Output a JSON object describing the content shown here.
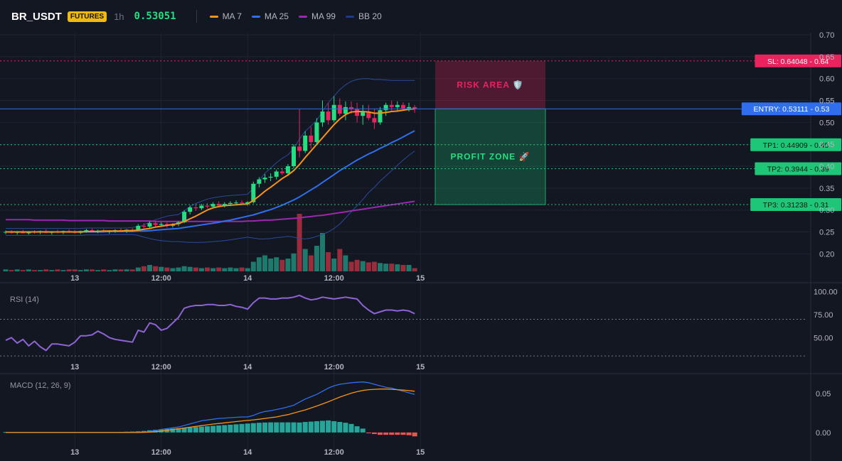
{
  "header": {
    "symbol": "BR_USDT",
    "badge": "FUTURES",
    "timeframe": "1h",
    "last_price": "0.53051",
    "price_color": "#26de81",
    "legend": [
      {
        "label": "MA 7",
        "color": "#f7931a"
      },
      {
        "label": "MA 25",
        "color": "#2f6fed"
      },
      {
        "label": "MA 99",
        "color": "#9c27b0"
      },
      {
        "label": "BB 20",
        "color": "#1e3a8a"
      }
    ]
  },
  "colors": {
    "background": "#131722",
    "grid": "#1f2430",
    "up": "#26de81",
    "down": "#e8245f",
    "vol_up": "#1d7a6c",
    "vol_down": "#9a2c3c",
    "ma7": "#f7931a",
    "ma25": "#2f6fed",
    "ma99": "#9c27b0",
    "bb": "#2a4a9a",
    "rsi": "#8e63d6",
    "macd": "#2f6fed",
    "signal": "#f7931a",
    "hist_up": "#26a69a",
    "hist_down": "#ef5350",
    "entry": "#2f6fed",
    "stop": "#e8245f",
    "target": "#1ec677"
  },
  "x_axis": {
    "labels": [
      "13",
      "12:00",
      "14",
      "12:00",
      "15"
    ],
    "label_bars": [
      12,
      27,
      42,
      57,
      72
    ]
  },
  "chart_data": [
    {
      "type": "candlestick",
      "pane": "price",
      "y_ticks": [
        "0.70",
        "0.65",
        "0.60",
        "0.55",
        "0.50",
        "0.45",
        "0.40",
        "0.35",
        "0.30",
        "0.25",
        "0.20"
      ],
      "ylim": [
        0.16,
        0.705
      ],
      "candles_ohlc": [
        [
          0.249,
          0.253,
          0.245,
          0.25
        ],
        [
          0.25,
          0.254,
          0.246,
          0.248
        ],
        [
          0.248,
          0.252,
          0.244,
          0.251
        ],
        [
          0.251,
          0.255,
          0.247,
          0.247
        ],
        [
          0.247,
          0.252,
          0.244,
          0.25
        ],
        [
          0.25,
          0.254,
          0.246,
          0.249
        ],
        [
          0.249,
          0.253,
          0.245,
          0.252
        ],
        [
          0.252,
          0.256,
          0.247,
          0.248
        ],
        [
          0.248,
          0.252,
          0.244,
          0.251
        ],
        [
          0.251,
          0.255,
          0.247,
          0.249
        ],
        [
          0.249,
          0.253,
          0.245,
          0.252
        ],
        [
          0.252,
          0.256,
          0.248,
          0.25
        ],
        [
          0.25,
          0.254,
          0.246,
          0.248
        ],
        [
          0.248,
          0.253,
          0.245,
          0.252
        ],
        [
          0.252,
          0.257,
          0.248,
          0.254
        ],
        [
          0.254,
          0.258,
          0.249,
          0.251
        ],
        [
          0.251,
          0.255,
          0.247,
          0.253
        ],
        [
          0.253,
          0.257,
          0.249,
          0.25
        ],
        [
          0.25,
          0.254,
          0.246,
          0.252
        ],
        [
          0.252,
          0.256,
          0.248,
          0.254
        ],
        [
          0.254,
          0.258,
          0.25,
          0.252
        ],
        [
          0.252,
          0.256,
          0.248,
          0.255
        ],
        [
          0.255,
          0.259,
          0.251,
          0.253
        ],
        [
          0.253,
          0.268,
          0.252,
          0.264
        ],
        [
          0.264,
          0.27,
          0.258,
          0.262
        ],
        [
          0.262,
          0.274,
          0.258,
          0.27
        ],
        [
          0.27,
          0.276,
          0.262,
          0.266
        ],
        [
          0.266,
          0.272,
          0.262,
          0.268
        ],
        [
          0.268,
          0.272,
          0.26,
          0.264
        ],
        [
          0.264,
          0.27,
          0.26,
          0.268
        ],
        [
          0.268,
          0.275,
          0.263,
          0.272
        ],
        [
          0.272,
          0.3,
          0.27,
          0.296
        ],
        [
          0.296,
          0.31,
          0.29,
          0.306
        ],
        [
          0.306,
          0.312,
          0.298,
          0.304
        ],
        [
          0.304,
          0.314,
          0.3,
          0.31
        ],
        [
          0.31,
          0.316,
          0.304,
          0.308
        ],
        [
          0.308,
          0.318,
          0.305,
          0.314
        ],
        [
          0.314,
          0.32,
          0.306,
          0.31
        ],
        [
          0.31,
          0.318,
          0.306,
          0.314
        ],
        [
          0.314,
          0.32,
          0.309,
          0.316
        ],
        [
          0.316,
          0.322,
          0.311,
          0.317
        ],
        [
          0.317,
          0.322,
          0.312,
          0.315
        ],
        [
          0.315,
          0.32,
          0.31,
          0.318
        ],
        [
          0.318,
          0.365,
          0.315,
          0.36
        ],
        [
          0.36,
          0.375,
          0.352,
          0.37
        ],
        [
          0.37,
          0.382,
          0.362,
          0.374
        ],
        [
          0.374,
          0.384,
          0.366,
          0.376
        ],
        [
          0.376,
          0.392,
          0.37,
          0.388
        ],
        [
          0.388,
          0.396,
          0.38,
          0.384
        ],
        [
          0.384,
          0.405,
          0.378,
          0.4
        ],
        [
          0.4,
          0.45,
          0.395,
          0.445
        ],
        [
          0.445,
          0.53,
          0.42,
          0.435
        ],
        [
          0.435,
          0.48,
          0.43,
          0.47
        ],
        [
          0.47,
          0.49,
          0.44,
          0.455
        ],
        [
          0.455,
          0.51,
          0.45,
          0.5
        ],
        [
          0.5,
          0.55,
          0.49,
          0.525
        ],
        [
          0.525,
          0.545,
          0.495,
          0.505
        ],
        [
          0.505,
          0.56,
          0.5,
          0.54
        ],
        [
          0.54,
          0.555,
          0.515,
          0.52
        ],
        [
          0.52,
          0.548,
          0.505,
          0.535
        ],
        [
          0.535,
          0.548,
          0.52,
          0.53
        ],
        [
          0.53,
          0.545,
          0.5,
          0.515
        ],
        [
          0.515,
          0.54,
          0.495,
          0.525
        ],
        [
          0.525,
          0.54,
          0.505,
          0.51
        ],
        [
          0.51,
          0.53,
          0.485,
          0.5
        ],
        [
          0.5,
          0.535,
          0.495,
          0.528
        ],
        [
          0.528,
          0.545,
          0.515,
          0.54
        ],
        [
          0.54,
          0.55,
          0.525,
          0.535
        ],
        [
          0.535,
          0.548,
          0.525,
          0.54
        ],
        [
          0.54,
          0.546,
          0.528,
          0.532
        ],
        [
          0.532,
          0.545,
          0.525,
          0.535
        ],
        [
          0.535,
          0.54,
          0.522,
          0.531
        ]
      ],
      "ma7": [
        0.25,
        0.25,
        0.25,
        0.25,
        0.25,
        0.25,
        0.25,
        0.25,
        0.25,
        0.25,
        0.25,
        0.25,
        0.25,
        0.25,
        0.251,
        0.251,
        0.251,
        0.252,
        0.252,
        0.252,
        0.252,
        0.253,
        0.253,
        0.254,
        0.256,
        0.258,
        0.261,
        0.263,
        0.265,
        0.267,
        0.269,
        0.274,
        0.28,
        0.286,
        0.293,
        0.3,
        0.305,
        0.308,
        0.31,
        0.311,
        0.312,
        0.313,
        0.314,
        0.322,
        0.332,
        0.343,
        0.352,
        0.362,
        0.372,
        0.38,
        0.39,
        0.404,
        0.42,
        0.435,
        0.45,
        0.465,
        0.48,
        0.495,
        0.508,
        0.518,
        0.524,
        0.525,
        0.525,
        0.524,
        0.521,
        0.521,
        0.523,
        0.525,
        0.526,
        0.528,
        0.53,
        0.531
      ],
      "ma25": [
        0.25,
        0.25,
        0.25,
        0.25,
        0.25,
        0.25,
        0.25,
        0.25,
        0.25,
        0.25,
        0.25,
        0.25,
        0.25,
        0.25,
        0.25,
        0.25,
        0.25,
        0.25,
        0.251,
        0.251,
        0.251,
        0.251,
        0.251,
        0.252,
        0.252,
        0.253,
        0.254,
        0.255,
        0.256,
        0.257,
        0.258,
        0.26,
        0.262,
        0.264,
        0.266,
        0.268,
        0.27,
        0.272,
        0.275,
        0.277,
        0.28,
        0.283,
        0.286,
        0.289,
        0.293,
        0.297,
        0.301,
        0.306,
        0.311,
        0.317,
        0.323,
        0.33,
        0.338,
        0.346,
        0.354,
        0.363,
        0.372,
        0.381,
        0.39,
        0.398,
        0.406,
        0.414,
        0.421,
        0.428,
        0.434,
        0.441,
        0.447,
        0.454,
        0.46,
        0.467,
        0.474,
        0.481
      ],
      "ma99": [
        0.278,
        0.278,
        0.278,
        0.278,
        0.278,
        0.277,
        0.277,
        0.277,
        0.277,
        0.277,
        0.277,
        0.276,
        0.276,
        0.276,
        0.276,
        0.276,
        0.276,
        0.276,
        0.275,
        0.275,
        0.275,
        0.275,
        0.275,
        0.275,
        0.275,
        0.275,
        0.274,
        0.274,
        0.274,
        0.274,
        0.274,
        0.274,
        0.274,
        0.274,
        0.274,
        0.274,
        0.274,
        0.274,
        0.274,
        0.274,
        0.274,
        0.274,
        0.275,
        0.275,
        0.276,
        0.277,
        0.277,
        0.278,
        0.279,
        0.28,
        0.281,
        0.282,
        0.284,
        0.285,
        0.287,
        0.288,
        0.29,
        0.292,
        0.294,
        0.296,
        0.298,
        0.3,
        0.302,
        0.304,
        0.306,
        0.308,
        0.31,
        0.312,
        0.314,
        0.316,
        0.318,
        0.32
      ],
      "bb_upper": [
        0.258,
        0.258,
        0.258,
        0.258,
        0.258,
        0.258,
        0.258,
        0.258,
        0.258,
        0.258,
        0.258,
        0.258,
        0.258,
        0.258,
        0.259,
        0.259,
        0.259,
        0.259,
        0.259,
        0.259,
        0.259,
        0.259,
        0.26,
        0.262,
        0.266,
        0.272,
        0.278,
        0.282,
        0.286,
        0.288,
        0.29,
        0.298,
        0.308,
        0.315,
        0.32,
        0.325,
        0.328,
        0.33,
        0.332,
        0.333,
        0.334,
        0.335,
        0.336,
        0.35,
        0.368,
        0.384,
        0.396,
        0.408,
        0.418,
        0.426,
        0.44,
        0.462,
        0.48,
        0.492,
        0.505,
        0.525,
        0.545,
        0.56,
        0.575,
        0.586,
        0.594,
        0.598,
        0.6,
        0.6,
        0.598,
        0.598,
        0.597,
        0.596,
        0.596,
        0.596,
        0.596,
        0.596
      ],
      "bb_lower": [
        0.242,
        0.242,
        0.242,
        0.242,
        0.242,
        0.242,
        0.242,
        0.242,
        0.242,
        0.242,
        0.242,
        0.242,
        0.242,
        0.242,
        0.243,
        0.243,
        0.243,
        0.243,
        0.244,
        0.244,
        0.244,
        0.244,
        0.244,
        0.242,
        0.238,
        0.235,
        0.232,
        0.23,
        0.229,
        0.228,
        0.228,
        0.227,
        0.226,
        0.226,
        0.226,
        0.227,
        0.228,
        0.229,
        0.23,
        0.232,
        0.234,
        0.236,
        0.238,
        0.236,
        0.234,
        0.234,
        0.235,
        0.237,
        0.238,
        0.24,
        0.238,
        0.235,
        0.234,
        0.236,
        0.24,
        0.244,
        0.25,
        0.258,
        0.268,
        0.282,
        0.296,
        0.31,
        0.324,
        0.34,
        0.352,
        0.366,
        0.378,
        0.39,
        0.402,
        0.414,
        0.425,
        0.435
      ],
      "volume": [
        3,
        2,
        3,
        2,
        3,
        2,
        2,
        3,
        2,
        3,
        2,
        3,
        3,
        2,
        3,
        3,
        2,
        3,
        2,
        3,
        3,
        3,
        3,
        6,
        8,
        10,
        8,
        7,
        6,
        5,
        6,
        8,
        7,
        6,
        5,
        6,
        5,
        6,
        5,
        6,
        5,
        6,
        5,
        15,
        22,
        25,
        20,
        22,
        18,
        20,
        28,
        90,
        35,
        25,
        40,
        60,
        30,
        20,
        35,
        25,
        15,
        18,
        16,
        14,
        15,
        13,
        12,
        12,
        11,
        10,
        10,
        5
      ],
      "volume_ylim": [
        0,
        100
      ],
      "levels": [
        {
          "name": "SL",
          "value": 0.64048,
          "label": "SL: 0.64048 - 0.64",
          "role": "stop"
        },
        {
          "name": "ENTRY",
          "value": 0.53111,
          "label": "ENTRY: 0.53111 - 0.53",
          "role": "entry"
        },
        {
          "name": "TP1",
          "value": 0.44909,
          "label": "TP1: 0.44909 - 0.45",
          "role": "target"
        },
        {
          "name": "TP2",
          "value": 0.3944,
          "label": "TP2: 0.3944 - 0.39",
          "role": "target"
        },
        {
          "name": "TP3",
          "value": 0.31238,
          "label": "TP3: 0.31238 - 0.31",
          "role": "target"
        }
      ],
      "zones": {
        "risk": {
          "label": "RISK AREA 🛡️",
          "from": 0.53111,
          "to": 0.64048
        },
        "profit": {
          "label": "PROFIT ZONE 🚀",
          "from": 0.31238,
          "to": 0.53111
        }
      }
    },
    {
      "type": "line",
      "pane": "rsi",
      "title": "RSI (14)",
      "y_ticks": [
        "100.00",
        "75.00",
        "50.00"
      ],
      "ylim": [
        27,
        102
      ],
      "bands": [
        70,
        30
      ],
      "values": [
        47,
        50,
        44,
        48,
        41,
        46,
        40,
        36,
        43,
        43,
        42,
        41,
        45,
        52,
        52,
        53,
        57,
        54,
        50,
        48,
        47,
        46,
        45,
        58,
        56,
        66,
        64,
        58,
        60,
        66,
        72,
        82,
        84,
        85,
        85,
        86,
        86,
        85,
        85,
        86,
        84,
        83,
        81,
        88,
        93,
        93,
        92,
        92,
        93,
        93,
        94,
        96,
        93,
        91,
        92,
        94,
        93,
        92,
        93,
        94,
        93,
        92,
        85,
        80,
        76,
        78,
        80,
        80,
        79,
        80,
        79,
        76
      ]
    },
    {
      "type": "line",
      "pane": "macd",
      "title": "MACD (12, 26, 9)",
      "y_ticks": [
        "0.05",
        "0.00"
      ],
      "ylim": [
        -0.012,
        0.072
      ],
      "macd": [
        0.0,
        0.0,
        0.0,
        0.0,
        0.0,
        0.0,
        0.0,
        0.0,
        0.0,
        0.0,
        0.0,
        0.0,
        0.0,
        0.0,
        0.0,
        0.0,
        0.0,
        0.0,
        0.0,
        0.0,
        0.0,
        0.0,
        0.0,
        0.0,
        0.0005,
        0.0012,
        0.0025,
        0.004,
        0.005,
        0.006,
        0.007,
        0.009,
        0.011,
        0.013,
        0.015,
        0.016,
        0.017,
        0.018,
        0.0185,
        0.019,
        0.0195,
        0.02,
        0.02,
        0.022,
        0.025,
        0.027,
        0.028,
        0.0295,
        0.031,
        0.033,
        0.035,
        0.039,
        0.043,
        0.046,
        0.049,
        0.053,
        0.057,
        0.06,
        0.062,
        0.063,
        0.064,
        0.0645,
        0.065,
        0.064,
        0.062,
        0.06,
        0.058,
        0.057,
        0.055,
        0.053,
        0.051,
        0.049
      ],
      "signal": [
        0.0,
        0.0,
        0.0,
        0.0,
        0.0,
        0.0,
        0.0,
        0.0,
        0.0,
        0.0,
        0.0,
        0.0,
        0.0,
        0.0,
        0.0,
        0.0,
        0.0,
        0.0,
        0.0,
        0.0,
        0.0,
        0.0,
        0.0,
        0.0,
        0.0002,
        0.0005,
        0.001,
        0.0018,
        0.0028,
        0.0038,
        0.0048,
        0.0058,
        0.0068,
        0.0078,
        0.0088,
        0.0098,
        0.0108,
        0.0116,
        0.0124,
        0.0132,
        0.014,
        0.0148,
        0.0155,
        0.0162,
        0.017,
        0.018,
        0.019,
        0.02,
        0.0215,
        0.023,
        0.025,
        0.027,
        0.029,
        0.0315,
        0.034,
        0.0368,
        0.0395,
        0.0425,
        0.0455,
        0.048,
        0.0505,
        0.0525,
        0.054,
        0.055,
        0.0555,
        0.0558,
        0.0558,
        0.0555,
        0.055,
        0.0545,
        0.0538,
        0.053
      ],
      "histogram": [
        0.0006,
        0.0006,
        0.0006,
        0.0006,
        0.0006,
        0.0006,
        0.0006,
        0.0006,
        0.0006,
        0.0006,
        0.0006,
        0.0006,
        0.0006,
        0.0006,
        0.0006,
        0.0006,
        0.0006,
        0.0006,
        0.0006,
        0.0006,
        0.0008,
        0.001,
        0.0012,
        0.0015,
        0.002,
        0.0028,
        0.0035,
        0.004,
        0.0045,
        0.005,
        0.0055,
        0.006,
        0.0065,
        0.007,
        0.0075,
        0.008,
        0.0085,
        0.009,
        0.0095,
        0.01,
        0.0105,
        0.011,
        0.0115,
        0.012,
        0.0125,
        0.0128,
        0.013,
        0.013,
        0.013,
        0.013,
        0.013,
        0.0128,
        0.0135,
        0.014,
        0.0145,
        0.015,
        0.0155,
        0.0145,
        0.0135,
        0.0125,
        0.011,
        0.008,
        0.005,
        -0.001,
        -0.002,
        -0.003,
        -0.003,
        -0.003,
        -0.003,
        -0.003,
        -0.0035,
        -0.005
      ]
    }
  ]
}
